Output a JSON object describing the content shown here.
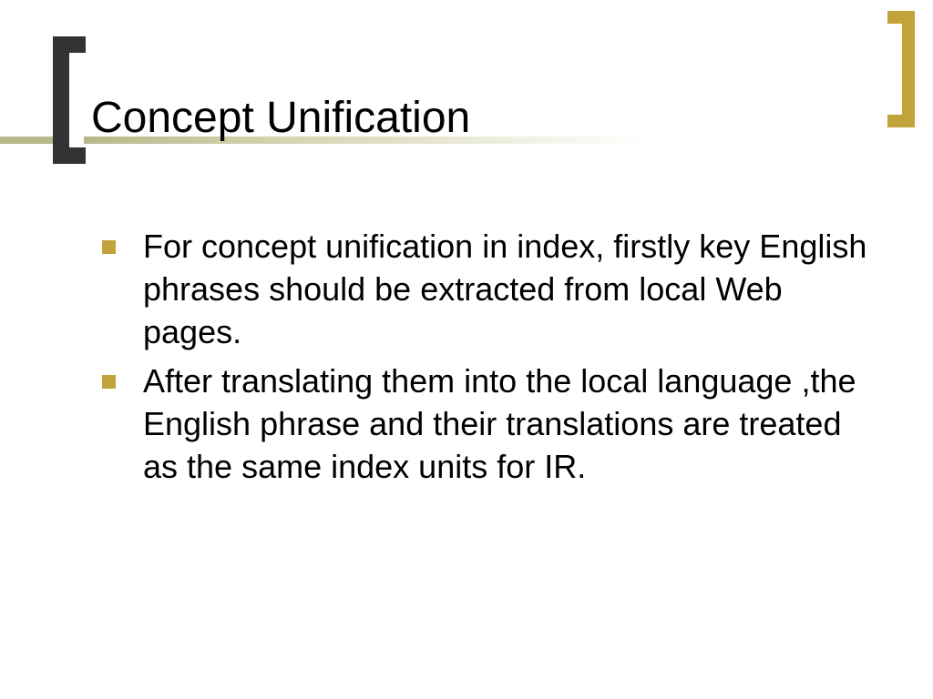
{
  "slide": {
    "title": "Concept Unification",
    "bullets": [
      "For concept unification in index, firstly key English phrases should be extracted from local Web pages.",
      "After translating them into the local language ,the English phrase and their translations are treated as the same index units for IR."
    ]
  },
  "colors": {
    "left_bracket": "#333333",
    "right_bracket": "#c2a33a",
    "bullet_square": "#c2a33a",
    "line_olive": "#b8b88a",
    "background": "#ffffff",
    "text": "#000000"
  },
  "typography": {
    "title_fontsize": 48,
    "body_fontsize": 36,
    "font_family": "Arial"
  }
}
